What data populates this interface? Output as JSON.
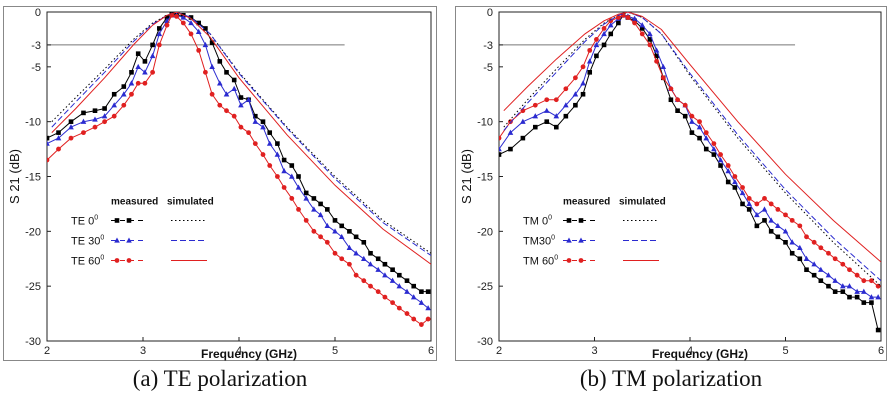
{
  "chart_data": [
    {
      "type": "line",
      "caption": "(a) TE polarization",
      "xlabel": "Frequency (GHz)",
      "ylabel": "S 21 (dB)",
      "xlim": [
        2,
        6
      ],
      "ylim": [
        -30,
        0
      ],
      "xticks": [
        "2",
        "3",
        "4",
        "5",
        "6"
      ],
      "yticks": [
        "0",
        "-3",
        "-5",
        "-10",
        "-15",
        "-20",
        "-25",
        "-30"
      ],
      "reference_line": {
        "y": -3,
        "x_range": [
          2,
          5.1
        ]
      },
      "legend": {
        "position": "lower-left",
        "header_measured": "measured",
        "header_simulated": "simulated",
        "rows": [
          {
            "label": "TE 0",
            "sup": "0"
          },
          {
            "label": "TE 30",
            "sup": "0"
          },
          {
            "label": "TE 60",
            "sup": "0"
          }
        ]
      },
      "series": [
        {
          "color": "#000000",
          "kind": "measured",
          "marker": "square",
          "x": [
            2.0,
            2.12,
            2.25,
            2.38,
            2.5,
            2.6,
            2.7,
            2.8,
            2.88,
            2.95,
            3.02,
            3.1,
            3.17,
            3.25,
            3.3,
            3.35,
            3.42,
            3.5,
            3.58,
            3.65,
            3.72,
            3.8,
            3.87,
            3.95,
            4.02,
            4.1,
            4.17,
            4.25,
            4.32,
            4.4,
            4.47,
            4.55,
            4.62,
            4.7,
            4.78,
            4.85,
            4.92,
            5.0,
            5.07,
            5.15,
            5.22,
            5.3,
            5.37,
            5.45,
            5.52,
            5.6,
            5.67,
            5.75,
            5.82,
            5.9,
            5.97
          ],
          "y": [
            -11.5,
            -11.0,
            -10.0,
            -9.2,
            -9.0,
            -8.8,
            -7.5,
            -6.8,
            -5.5,
            -3.8,
            -4.5,
            -3.0,
            -1.5,
            -0.5,
            -0.2,
            -0.3,
            -0.3,
            -0.5,
            -1.0,
            -1.5,
            -2.8,
            -4.5,
            -5.5,
            -6.2,
            -7.8,
            -8.0,
            -9.5,
            -10.0,
            -11.0,
            -12.0,
            -13.5,
            -14.0,
            -15.0,
            -16.5,
            -17.0,
            -17.5,
            -18.0,
            -19.0,
            -19.5,
            -20.0,
            -20.5,
            -21.0,
            -22.0,
            -22.5,
            -23.0,
            -23.5,
            -24.0,
            -24.5,
            -25.0,
            -25.5,
            -25.5
          ]
        },
        {
          "color": "#2b2bd0",
          "kind": "measured",
          "marker": "triangle",
          "x": [
            2.0,
            2.12,
            2.25,
            2.38,
            2.5,
            2.6,
            2.7,
            2.8,
            2.88,
            2.95,
            3.02,
            3.1,
            3.17,
            3.25,
            3.3,
            3.35,
            3.42,
            3.5,
            3.58,
            3.65,
            3.72,
            3.8,
            3.87,
            3.95,
            4.02,
            4.1,
            4.17,
            4.25,
            4.32,
            4.4,
            4.47,
            4.55,
            4.62,
            4.7,
            4.78,
            4.85,
            4.92,
            5.0,
            5.07,
            5.15,
            5.22,
            5.3,
            5.37,
            5.45,
            5.52,
            5.6,
            5.67,
            5.75,
            5.82,
            5.9,
            5.97
          ],
          "y": [
            -12.0,
            -11.5,
            -10.5,
            -10.0,
            -9.8,
            -9.5,
            -8.5,
            -7.5,
            -6.5,
            -5.0,
            -5.5,
            -4.0,
            -2.0,
            -0.8,
            -0.3,
            -0.3,
            -0.5,
            -1.0,
            -1.8,
            -3.0,
            -5.0,
            -6.5,
            -7.5,
            -7.0,
            -8.5,
            -8.0,
            -10.0,
            -10.5,
            -12.0,
            -13.0,
            -14.5,
            -15.0,
            -16.0,
            -17.0,
            -18.0,
            -18.5,
            -19.5,
            -20.0,
            -20.5,
            -21.5,
            -22.0,
            -22.5,
            -23.0,
            -23.5,
            -24.0,
            -24.5,
            -25.0,
            -25.5,
            -26.0,
            -26.5,
            -27.0
          ]
        },
        {
          "color": "#e02020",
          "kind": "measured",
          "marker": "circle",
          "x": [
            2.0,
            2.12,
            2.25,
            2.38,
            2.5,
            2.6,
            2.7,
            2.8,
            2.88,
            2.95,
            3.02,
            3.1,
            3.17,
            3.25,
            3.3,
            3.35,
            3.42,
            3.5,
            3.58,
            3.65,
            3.72,
            3.8,
            3.87,
            3.95,
            4.02,
            4.1,
            4.17,
            4.25,
            4.32,
            4.4,
            4.47,
            4.55,
            4.62,
            4.7,
            4.78,
            4.85,
            4.92,
            5.0,
            5.07,
            5.15,
            5.22,
            5.3,
            5.37,
            5.45,
            5.52,
            5.6,
            5.67,
            5.75,
            5.82,
            5.9,
            5.97
          ],
          "y": [
            -13.5,
            -12.5,
            -11.5,
            -11.0,
            -10.5,
            -10.0,
            -9.5,
            -8.5,
            -7.5,
            -6.5,
            -6.5,
            -5.5,
            -3.0,
            -1.2,
            -0.3,
            -0.4,
            -1.0,
            -2.0,
            -3.5,
            -5.5,
            -7.5,
            -8.5,
            -9.0,
            -9.5,
            -10.5,
            -11.0,
            -12.0,
            -13.0,
            -14.0,
            -15.0,
            -16.0,
            -17.0,
            -18.0,
            -19.0,
            -20.0,
            -20.5,
            -21.0,
            -22.0,
            -22.5,
            -23.0,
            -24.0,
            -24.5,
            -25.0,
            -25.5,
            -26.0,
            -26.5,
            -27.0,
            -27.5,
            -28.0,
            -28.5,
            -28.0
          ]
        },
        {
          "color": "#000000",
          "kind": "simulated",
          "dash": "1.5,2.5",
          "x": [
            2.05,
            2.3,
            2.6,
            2.9,
            3.1,
            3.25,
            3.35,
            3.5,
            3.7,
            4.0,
            4.5,
            5.0,
            5.5,
            6.0
          ],
          "y": [
            -10.0,
            -7.8,
            -5.2,
            -2.5,
            -1.0,
            -0.3,
            0,
            -0.5,
            -2.0,
            -5.5,
            -10.5,
            -15.0,
            -19.0,
            -22.0
          ]
        },
        {
          "color": "#2b2bd0",
          "kind": "simulated",
          "dash": "6,3",
          "x": [
            2.05,
            2.3,
            2.6,
            2.9,
            3.1,
            3.25,
            3.35,
            3.5,
            3.7,
            4.0,
            4.5,
            5.0,
            5.5,
            6.0
          ],
          "y": [
            -10.5,
            -8.2,
            -5.5,
            -2.7,
            -1.1,
            -0.3,
            0,
            -0.5,
            -2.0,
            -5.6,
            -10.6,
            -15.2,
            -19.2,
            -22.2
          ]
        },
        {
          "color": "#e02020",
          "kind": "simulated",
          "dash": "",
          "x": [
            2.05,
            2.3,
            2.6,
            2.9,
            3.1,
            3.25,
            3.35,
            3.5,
            3.7,
            4.0,
            4.5,
            5.0,
            5.5,
            6.0
          ],
          "y": [
            -11.0,
            -8.8,
            -6.0,
            -3.0,
            -1.2,
            -0.3,
            0,
            -0.6,
            -2.3,
            -6.0,
            -11.2,
            -15.8,
            -19.8,
            -23.0
          ]
        }
      ]
    },
    {
      "type": "line",
      "caption": "(b) TM polarization",
      "xlabel": "Frequency (GHz)",
      "ylabel": "S 21 (dB)",
      "xlim": [
        2,
        6
      ],
      "ylim": [
        -30,
        0
      ],
      "xticks": [
        "2",
        "3",
        "4",
        "5",
        "6"
      ],
      "yticks": [
        "0",
        "-3",
        "-5",
        "-10",
        "-15",
        "-20",
        "-25",
        "-30"
      ],
      "reference_line": {
        "y": -3,
        "x_range": [
          2,
          5.1
        ]
      },
      "legend": {
        "position": "lower-left",
        "header_measured": "measured",
        "header_simulated": "simulated",
        "rows": [
          {
            "label": "TM 0",
            "sup": "0"
          },
          {
            "label": "TM30",
            "sup": "0"
          },
          {
            "label": "TM 60",
            "sup": "0"
          }
        ]
      },
      "series": [
        {
          "color": "#000000",
          "kind": "measured",
          "marker": "square",
          "x": [
            2.0,
            2.12,
            2.25,
            2.38,
            2.5,
            2.6,
            2.7,
            2.8,
            2.88,
            2.95,
            3.02,
            3.1,
            3.17,
            3.25,
            3.3,
            3.35,
            3.42,
            3.5,
            3.58,
            3.65,
            3.72,
            3.8,
            3.87,
            3.95,
            4.02,
            4.1,
            4.17,
            4.25,
            4.32,
            4.4,
            4.47,
            4.55,
            4.62,
            4.7,
            4.78,
            4.85,
            4.92,
            5.0,
            5.07,
            5.15,
            5.22,
            5.3,
            5.37,
            5.45,
            5.52,
            5.6,
            5.67,
            5.75,
            5.82,
            5.9,
            5.97
          ],
          "y": [
            -13.0,
            -12.5,
            -11.5,
            -10.5,
            -10.0,
            -10.5,
            -9.5,
            -8.5,
            -7.5,
            -5.5,
            -4.0,
            -3.0,
            -2.0,
            -1.0,
            -0.3,
            -0.5,
            -0.8,
            -1.5,
            -2.5,
            -4.0,
            -6.0,
            -8.0,
            -9.0,
            -9.5,
            -11.0,
            -11.5,
            -12.5,
            -13.0,
            -14.0,
            -15.5,
            -16.0,
            -17.5,
            -18.0,
            -19.5,
            -19.0,
            -20.0,
            -20.5,
            -21.0,
            -22.0,
            -22.5,
            -23.5,
            -24.0,
            -24.5,
            -25.0,
            -25.5,
            -25.5,
            -26.0,
            -26.0,
            -26.5,
            -26.5,
            -29.0
          ]
        },
        {
          "color": "#2b2bd0",
          "kind": "measured",
          "marker": "triangle",
          "x": [
            2.0,
            2.12,
            2.25,
            2.38,
            2.5,
            2.6,
            2.7,
            2.8,
            2.88,
            2.95,
            3.02,
            3.1,
            3.17,
            3.25,
            3.3,
            3.35,
            3.42,
            3.5,
            3.58,
            3.65,
            3.72,
            3.8,
            3.87,
            3.95,
            4.02,
            4.1,
            4.17,
            4.25,
            4.32,
            4.4,
            4.47,
            4.55,
            4.62,
            4.7,
            4.78,
            4.85,
            4.92,
            5.0,
            5.07,
            5.15,
            5.22,
            5.3,
            5.37,
            5.45,
            5.52,
            5.6,
            5.67,
            5.75,
            5.82,
            5.9,
            5.97
          ],
          "y": [
            -12.5,
            -11.0,
            -10.0,
            -9.5,
            -9.0,
            -9.5,
            -8.5,
            -7.5,
            -6.5,
            -4.5,
            -3.0,
            -2.0,
            -1.2,
            -0.6,
            -0.3,
            -0.4,
            -0.6,
            -1.2,
            -2.0,
            -3.5,
            -5.0,
            -7.0,
            -8.0,
            -8.5,
            -10.0,
            -10.5,
            -11.5,
            -12.5,
            -13.5,
            -14.5,
            -15.5,
            -16.5,
            -17.5,
            -18.5,
            -18.0,
            -19.0,
            -19.5,
            -20.0,
            -21.0,
            -21.5,
            -22.5,
            -23.0,
            -23.5,
            -24.0,
            -24.5,
            -25.0,
            -25.0,
            -25.5,
            -25.5,
            -26.0,
            -26.0
          ]
        },
        {
          "color": "#e02020",
          "kind": "measured",
          "marker": "circle",
          "x": [
            2.0,
            2.12,
            2.25,
            2.38,
            2.5,
            2.6,
            2.7,
            2.8,
            2.88,
            2.95,
            3.02,
            3.1,
            3.17,
            3.25,
            3.3,
            3.35,
            3.42,
            3.5,
            3.58,
            3.65,
            3.72,
            3.8,
            3.87,
            3.95,
            4.02,
            4.1,
            4.17,
            4.25,
            4.32,
            4.4,
            4.47,
            4.55,
            4.62,
            4.7,
            4.78,
            4.85,
            4.92,
            5.0,
            5.07,
            5.15,
            5.22,
            5.3,
            5.37,
            5.45,
            5.52,
            5.6,
            5.67,
            5.75,
            5.82,
            5.9,
            5.97
          ],
          "y": [
            -11.5,
            -10.0,
            -9.0,
            -8.5,
            -8.0,
            -8.0,
            -7.0,
            -6.0,
            -5.0,
            -3.5,
            -2.5,
            -1.5,
            -0.8,
            -0.5,
            -0.3,
            -0.5,
            -1.0,
            -2.0,
            -3.0,
            -4.5,
            -6.0,
            -7.0,
            -8.0,
            -8.5,
            -9.5,
            -10.0,
            -11.0,
            -12.0,
            -13.0,
            -14.0,
            -15.0,
            -16.0,
            -17.0,
            -17.5,
            -17.0,
            -17.5,
            -18.0,
            -18.5,
            -19.0,
            -19.5,
            -20.5,
            -21.0,
            -21.5,
            -22.0,
            -22.5,
            -23.0,
            -23.5,
            -24.0,
            -24.5,
            -24.5,
            -25.0
          ]
        },
        {
          "color": "#000000",
          "kind": "simulated",
          "dash": "1.5,2.5",
          "x": [
            2.05,
            2.3,
            2.6,
            2.9,
            3.1,
            3.25,
            3.35,
            3.5,
            3.7,
            4.0,
            4.5,
            5.0,
            5.5,
            6.0
          ],
          "y": [
            -10.5,
            -8.0,
            -5.2,
            -2.5,
            -1.0,
            -0.3,
            0,
            -0.5,
            -2.0,
            -5.8,
            -11.5,
            -16.5,
            -21.0,
            -25.0
          ]
        },
        {
          "color": "#2b2bd0",
          "kind": "simulated",
          "dash": "6,3",
          "x": [
            2.05,
            2.3,
            2.6,
            2.9,
            3.1,
            3.25,
            3.35,
            3.5,
            3.7,
            4.0,
            4.5,
            5.0,
            5.5,
            6.0
          ],
          "y": [
            -10.8,
            -8.3,
            -5.5,
            -2.7,
            -1.1,
            -0.3,
            0,
            -0.5,
            -2.0,
            -5.6,
            -11.2,
            -16.2,
            -20.6,
            -24.5
          ]
        },
        {
          "color": "#e02020",
          "kind": "simulated",
          "dash": "",
          "x": [
            2.05,
            2.3,
            2.6,
            2.9,
            3.1,
            3.25,
            3.35,
            3.5,
            3.7,
            4.0,
            4.5,
            5.0,
            5.5,
            6.0
          ],
          "y": [
            -9.0,
            -6.8,
            -4.3,
            -2.0,
            -0.8,
            -0.2,
            0,
            -0.4,
            -1.6,
            -4.8,
            -10.0,
            -14.8,
            -19.0,
            -22.8
          ]
        }
      ]
    }
  ]
}
